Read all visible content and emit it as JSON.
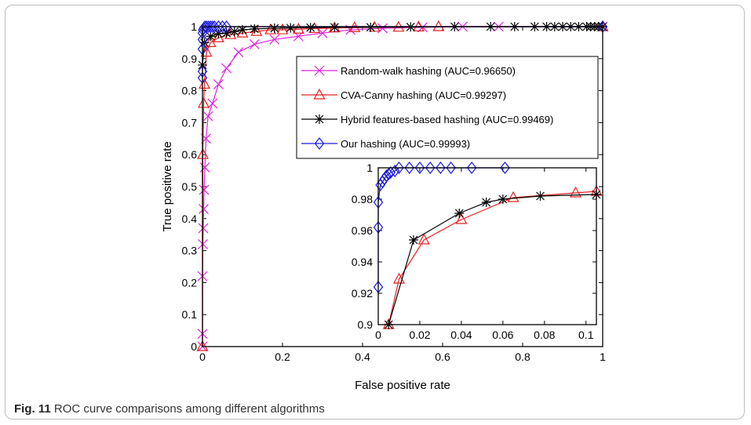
{
  "caption": {
    "label": "Fig. 11",
    "text": "ROC curve comparisons among different algorithms"
  },
  "chart_data": [
    {
      "type": "line",
      "xlabel": "False positive rate",
      "ylabel": "True positive rate",
      "xlim": [
        0,
        1
      ],
      "ylim": [
        0,
        1
      ],
      "xticks": [
        "0",
        "0.2",
        "0.4",
        "0.6",
        "0.8",
        "1"
      ],
      "yticks": [
        "0",
        "0.1",
        "0.2",
        "0.3",
        "0.4",
        "0.5",
        "0.6",
        "0.7",
        "0.8",
        "0.9",
        "1"
      ],
      "grid": false,
      "legend_position": "top-right",
      "series": [
        {
          "name": "Random-walk hashing (AUC=0.96650)",
          "color": "#e020e0",
          "marker": "x",
          "x": [
            0,
            0,
            0,
            0.001,
            0.002,
            0.003,
            0.004,
            0.006,
            0.009,
            0.014,
            0.025,
            0.04,
            0.06,
            0.09,
            0.13,
            0.18,
            0.24,
            0.3,
            0.37,
            0.45,
            0.55,
            0.65,
            0.74,
            1
          ],
          "y": [
            0,
            0.04,
            0.22,
            0.32,
            0.37,
            0.43,
            0.49,
            0.56,
            0.65,
            0.72,
            0.76,
            0.82,
            0.87,
            0.92,
            0.945,
            0.96,
            0.97,
            0.98,
            0.99,
            0.995,
            0.998,
            1,
            1,
            1
          ]
        },
        {
          "name": "CVA-Canny hashing (AUC=0.99297)",
          "color": "#e82020",
          "marker": "triangle",
          "x": [
            0,
            0.001,
            0.003,
            0.005,
            0.01,
            0.02,
            0.04,
            0.07,
            0.1,
            0.135,
            0.17,
            0.2,
            0.24,
            0.28,
            0.33,
            0.38,
            0.43,
            0.49,
            0.54,
            0.59,
            1
          ],
          "y": [
            0,
            0.6,
            0.76,
            0.82,
            0.92,
            0.95,
            0.965,
            0.975,
            0.98,
            0.985,
            0.99,
            0.99,
            0.992,
            0.994,
            0.996,
            0.997,
            0.998,
            0.998,
            0.999,
            1,
            1
          ]
        },
        {
          "name": "Hybrid features-based hashing (AUC=0.99469)",
          "color": "#000000",
          "marker": "asterisk",
          "x": [
            0,
            0.005,
            0.02,
            0.04,
            0.06,
            0.08,
            0.1,
            0.13,
            0.18,
            0.22,
            0.27,
            0.33,
            0.42,
            0.52,
            0.63,
            0.72,
            0.78,
            0.83,
            0.86,
            0.88,
            0.9,
            0.92,
            0.94,
            0.96,
            0.97,
            0.98,
            0.99,
            1
          ],
          "y": [
            0.88,
            0.95,
            0.97,
            0.978,
            0.98,
            0.985,
            0.99,
            0.993,
            0.995,
            0.996,
            0.997,
            0.998,
            0.998,
            0.999,
            1,
            1,
            1,
            1,
            1,
            1,
            1,
            1,
            1,
            1,
            1,
            1,
            1,
            1
          ]
        },
        {
          "name": "Our hashing (AUC=0.99993)",
          "color": "#1a1adf",
          "marker": "diamond",
          "x": [
            0,
            0,
            0,
            0,
            0,
            0.001,
            0.003,
            0.006,
            0.01,
            0.015,
            0.02,
            0.025,
            0.03,
            0.04,
            0.05,
            0.06,
            1
          ],
          "y": [
            0.84,
            0.86,
            0.93,
            0.96,
            0.98,
            0.99,
            0.995,
            1,
            1,
            1,
            1,
            1,
            1,
            1,
            1,
            1,
            1
          ]
        }
      ]
    },
    {
      "type": "line",
      "xlim": [
        0,
        0.105
      ],
      "ylim": [
        0.9,
        1
      ],
      "xticks": [
        "0",
        "0.02",
        "0.04",
        "0.06",
        "0.08",
        "0.1"
      ],
      "yticks": [
        "0.9",
        "0.92",
        "0.94",
        "0.96",
        "0.98",
        "1"
      ],
      "grid": false,
      "series": [
        {
          "color": "#e82020",
          "marker": "triangle",
          "x": [
            0.005,
            0.01,
            0.022,
            0.04,
            0.065,
            0.095,
            0.105
          ],
          "y": [
            0.9,
            0.929,
            0.954,
            0.967,
            0.981,
            0.984,
            0.985
          ]
        },
        {
          "color": "#000000",
          "marker": "asterisk",
          "x": [
            0.005,
            0.017,
            0.039,
            0.052,
            0.06,
            0.078,
            0.105
          ],
          "y": [
            0.9,
            0.954,
            0.971,
            0.978,
            0.98,
            0.982,
            0.983
          ]
        },
        {
          "color": "#1a1adf",
          "marker": "diamond",
          "x": [
            0,
            0,
            0,
            0.001,
            0.002,
            0.003,
            0.004,
            0.005,
            0.006,
            0.008,
            0.01,
            0.015,
            0.02,
            0.025,
            0.03,
            0.035,
            0.045,
            0.061
          ],
          "y": [
            0.924,
            0.962,
            0.978,
            0.989,
            0.991,
            0.993,
            0.995,
            0.996,
            0.997,
            0.998,
            1,
            1,
            1,
            1,
            1,
            1,
            1,
            1
          ]
        }
      ]
    }
  ]
}
